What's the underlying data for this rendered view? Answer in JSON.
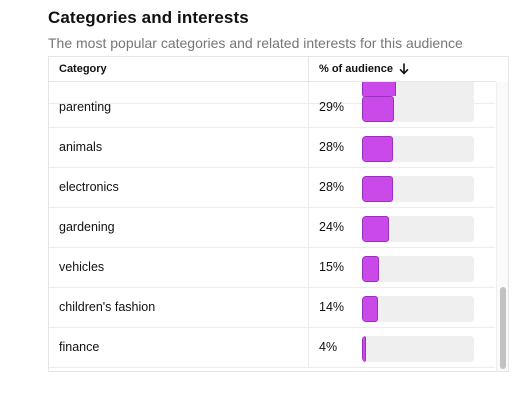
{
  "section": {
    "title": "Categories and interests",
    "subtitle": "The most popular categories and related interests for this audience"
  },
  "table": {
    "headers": {
      "category": "Category",
      "percent": "% of audience"
    },
    "sort_icon": "arrow-down-icon",
    "bar_color": "#c94ae8",
    "bar_track_color": "#efefef",
    "rows": [
      {
        "category": "",
        "percent": "",
        "value": 30,
        "partial": true
      },
      {
        "category": "parenting",
        "percent": "29%",
        "value": 29
      },
      {
        "category": "animals",
        "percent": "28%",
        "value": 28
      },
      {
        "category": "electronics",
        "percent": "28%",
        "value": 28
      },
      {
        "category": "gardening",
        "percent": "24%",
        "value": 24
      },
      {
        "category": "vehicles",
        "percent": "15%",
        "value": 15
      },
      {
        "category": "children's fashion",
        "percent": "14%",
        "value": 14
      },
      {
        "category": "finance",
        "percent": "4%",
        "value": 4
      }
    ]
  }
}
